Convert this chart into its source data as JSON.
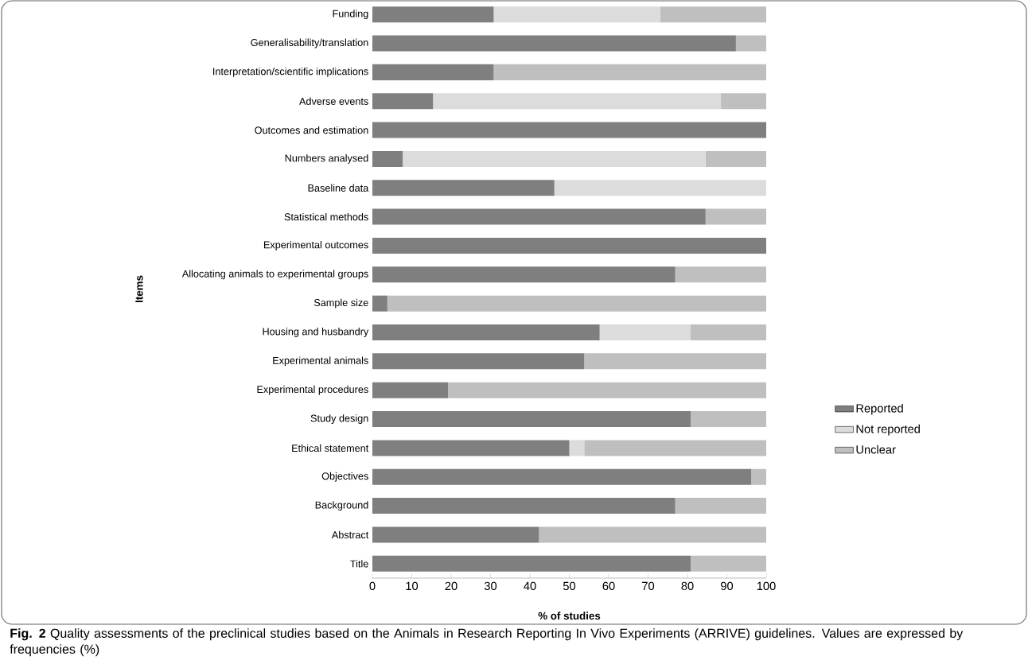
{
  "chart_data": {
    "type": "bar",
    "orientation": "horizontal",
    "stacked": true,
    "xlabel": "% of studies",
    "ylabel": "Items",
    "categories": [
      "Funding",
      "Generalisability/translation",
      "Interpretation/scientific implications",
      "Adverse events",
      "Outcomes and estimation",
      "Numbers analysed",
      "Baseline data",
      "Statistical methods",
      "Experimental outcomes",
      "Allocating animals to experimental groups",
      "Sample size",
      "Housing and husbandry",
      "Experimental animals",
      "Experimental procedures",
      "Study design",
      "Ethical statement",
      "Objectives",
      "Background",
      "Abstract",
      "Title"
    ],
    "series": [
      {
        "name": "Reported",
        "color": "#7f7f7f",
        "values": [
          30.8,
          92.3,
          30.8,
          15.4,
          100,
          7.7,
          46.2,
          84.6,
          100,
          76.9,
          3.8,
          57.7,
          53.8,
          19.2,
          80.8,
          50,
          96.2,
          76.9,
          42.3,
          80.8
        ]
      },
      {
        "name": "Not reported",
        "color": "#dcdcdc",
        "values": [
          42.3,
          null,
          null,
          73.1,
          null,
          76.9,
          53.8,
          null,
          null,
          null,
          null,
          23.1,
          null,
          null,
          null,
          3.8,
          null,
          null,
          null,
          null
        ]
      },
      {
        "name": "Unclear",
        "color": "#bfbfbf",
        "values": [
          26.9,
          7.7,
          69.2,
          11.5,
          null,
          15.4,
          null,
          15.4,
          null,
          23.1,
          96.2,
          19.2,
          46.2,
          80.8,
          19.2,
          46.2,
          3.8,
          23.1,
          57.7,
          19.2
        ]
      }
    ],
    "xlim": [
      0,
      100
    ],
    "xticks": [
      0,
      10,
      20,
      30,
      40,
      50,
      60,
      70,
      80,
      90,
      100
    ],
    "legend": "right",
    "annotations": [
      "**Fig. 2** Quality assessments of the preclinical studies based on the Animals in Research Reporting In Vivo Experiments (ARRIVE) guidelines. Values are expressed by frequencies (%)"
    ]
  }
}
